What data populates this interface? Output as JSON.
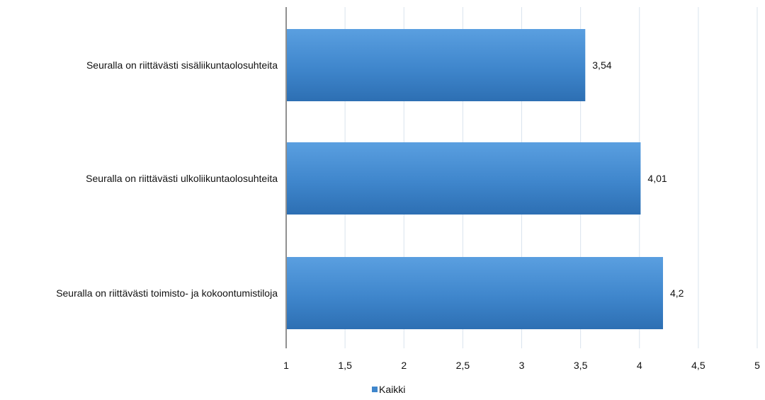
{
  "chart_data": {
    "type": "bar",
    "orientation": "horizontal",
    "categories": [
      "Seuralla on riittävästi sisäliikuntaolosuhteita",
      "Seuralla on riittävästi ulkoliikuntaolosuhteita",
      "Seuralla on riittävästi toimisto- ja kokoontumistiloja"
    ],
    "series": [
      {
        "name": "Kaikki",
        "values": [
          3.54,
          4.01,
          4.2
        ],
        "labels": [
          "3,54",
          "4,01",
          "4,2"
        ],
        "color": "#3f86cc"
      }
    ],
    "xlim": [
      1,
      5
    ],
    "ticks": [
      1,
      1.5,
      2,
      2.5,
      3,
      3.5,
      4,
      4.5,
      5
    ],
    "tick_labels": [
      "1",
      "1,5",
      "2",
      "2,5",
      "3",
      "3,5",
      "4",
      "4,5",
      "5"
    ],
    "grid": true,
    "legend": "bottom"
  }
}
